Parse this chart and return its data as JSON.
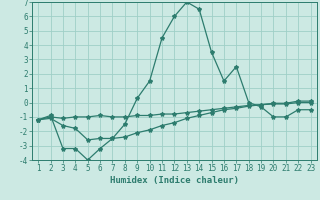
{
  "xlabel": "Humidex (Indice chaleur)",
  "x": [
    1,
    2,
    3,
    4,
    5,
    6,
    7,
    8,
    9,
    10,
    11,
    12,
    13,
    14,
    15,
    16,
    17,
    18,
    19,
    20,
    21,
    22,
    23
  ],
  "line1": [
    -1.2,
    -0.9,
    -3.2,
    -3.2,
    -4.0,
    -3.2,
    -2.5,
    -1.5,
    0.3,
    1.5,
    4.5,
    6.0,
    7.0,
    6.5,
    3.5,
    1.5,
    2.5,
    0.0,
    -0.3,
    -1.0,
    -1.0,
    -0.5,
    -0.5
  ],
  "line2": [
    -1.2,
    -1.0,
    -1.1,
    -1.0,
    -1.0,
    -0.9,
    -1.0,
    -1.0,
    -0.9,
    -0.9,
    -0.8,
    -0.8,
    -0.7,
    -0.6,
    -0.5,
    -0.4,
    -0.3,
    -0.2,
    -0.15,
    -0.1,
    -0.1,
    0.0,
    0.0
  ],
  "line3": [
    -1.2,
    -1.1,
    -1.6,
    -1.8,
    -2.6,
    -2.5,
    -2.5,
    -2.4,
    -2.1,
    -1.9,
    -1.6,
    -1.4,
    -1.1,
    -0.9,
    -0.7,
    -0.5,
    -0.4,
    -0.25,
    -0.15,
    -0.05,
    -0.05,
    0.1,
    0.1
  ],
  "line_color": "#2d7c6e",
  "bg_color": "#cce9e3",
  "grid_color": "#9fcfc7",
  "ylim": [
    -4,
    7
  ],
  "yticks": [
    -4,
    -3,
    -2,
    -1,
    0,
    1,
    2,
    3,
    4,
    5,
    6,
    7
  ],
  "xticks": [
    1,
    2,
    3,
    4,
    5,
    6,
    7,
    8,
    9,
    10,
    11,
    12,
    13,
    14,
    15,
    16,
    17,
    18,
    19,
    20,
    21,
    22,
    23
  ],
  "marker": "*",
  "markersize": 3,
  "linewidth": 0.9,
  "tick_fontsize": 5.5,
  "xlabel_fontsize": 6.5
}
